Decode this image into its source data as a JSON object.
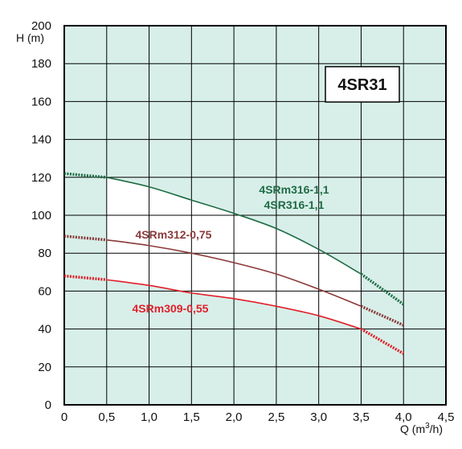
{
  "chart_data": {
    "type": "line",
    "title": "4SR31",
    "xlabel": "Q (m",
    "xlabel_sup": "3",
    "xlabel_tail": "/h)",
    "ylabel": "H (m)",
    "xlim": [
      0,
      4.5
    ],
    "ylim": [
      0,
      200
    ],
    "x_ticks": [
      0,
      0.5,
      1.0,
      1.5,
      2.0,
      2.5,
      3.0,
      3.5,
      4.0,
      4.5
    ],
    "x_tick_labels": [
      "0",
      "0,5",
      "1,0",
      "1,5",
      "2,0",
      "2,5",
      "3,0",
      "3,5",
      "4,0",
      "4,5"
    ],
    "y_ticks": [
      0,
      20,
      40,
      60,
      80,
      100,
      120,
      140,
      160,
      180,
      200
    ],
    "y_tick_labels": [
      "0",
      "20",
      "40",
      "60",
      "80",
      "100",
      "120",
      "140",
      "160",
      "180",
      "200"
    ],
    "grid": true,
    "operating_range": [
      0.5,
      3.5
    ],
    "colors": {
      "grid": "#000000",
      "shaded_band": "#d8efe9",
      "operating_band": "#ffffff"
    },
    "series": [
      {
        "labels": [
          "4SRm316-1,1",
          "4SR316-1,1"
        ],
        "color": "#1f6b45",
        "x": [
          0,
          0.5,
          1.0,
          1.5,
          2.0,
          2.5,
          3.0,
          3.5,
          4.0
        ],
        "y": [
          122,
          120,
          115,
          108,
          101,
          93,
          82,
          69,
          53
        ]
      },
      {
        "labels": [
          "4SRm312-0,75"
        ],
        "color": "#8b3a3a",
        "x": [
          0,
          0.5,
          1.0,
          1.5,
          2.0,
          2.5,
          3.0,
          3.5,
          4.0
        ],
        "y": [
          89,
          87,
          84,
          80,
          75,
          69,
          61,
          52,
          42
        ]
      },
      {
        "labels": [
          "4SRm309-0,55"
        ],
        "color": "#e0202a",
        "x": [
          0,
          0.5,
          1.0,
          1.5,
          2.0,
          2.5,
          3.0,
          3.5,
          4.0
        ],
        "y": [
          68,
          66,
          63,
          59,
          56,
          52,
          47,
          40,
          27
        ]
      }
    ]
  }
}
